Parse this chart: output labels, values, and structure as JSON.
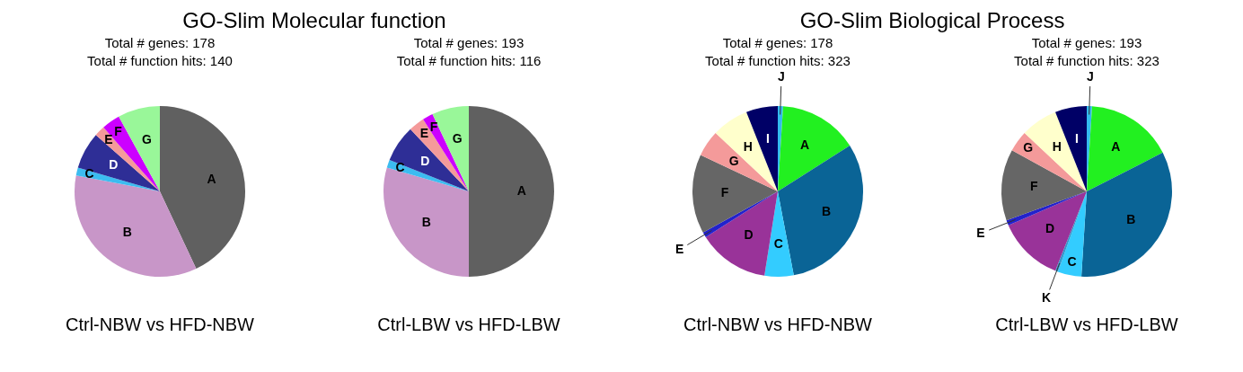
{
  "chart_data": [
    {
      "type": "pie",
      "title": "GO-Slim Molecular function",
      "subtitle": "Total # genes: 178",
      "annotations": [
        "Total # function hits: 140"
      ],
      "xlabel": "Ctrl-NBW vs HFD-NBW",
      "categories": [
        "A",
        "B",
        "C",
        "D",
        "E",
        "F",
        "G"
      ],
      "values": [
        43,
        35,
        1.5,
        7,
        2,
        3.5,
        8
      ],
      "colors": [
        "#606060",
        "#c896c8",
        "#3cbcf0",
        "#2e2e96",
        "#f49a9a",
        "#cc00ff",
        "#99f799"
      ]
    },
    {
      "type": "pie",
      "subtitle": "Total # genes: 193",
      "annotations": [
        "Total # function hits: 116"
      ],
      "xlabel": "Ctrl-LBW vs HFD-LBW",
      "categories": [
        "A",
        "B",
        "C",
        "D",
        "E",
        "F",
        "G"
      ],
      "values": [
        50,
        29.5,
        1.5,
        7,
        3,
        2,
        7
      ],
      "colors": [
        "#606060",
        "#c896c8",
        "#3cbcf0",
        "#2e2e96",
        "#f49a9a",
        "#cc00ff",
        "#99f799"
      ]
    },
    {
      "type": "pie",
      "title": "GO-Slim Biological Process",
      "subtitle": "Total # genes: 178",
      "annotations": [
        "Total # function hits: 323"
      ],
      "xlabel": "Ctrl-NBW vs HFD-NBW",
      "categories": [
        "J",
        "A",
        "B",
        "C",
        "D",
        "E",
        "F",
        "G",
        "H",
        "I"
      ],
      "values": [
        1,
        15,
        31,
        5.5,
        13.5,
        1,
        15,
        5,
        7,
        6
      ],
      "colors": [
        "#33bbee",
        "#22f020",
        "#0a6496",
        "#33ccff",
        "#993399",
        "#2222cc",
        "#666666",
        "#f49a9a",
        "#ffffcc",
        "#000066"
      ]
    },
    {
      "type": "pie",
      "subtitle": "Total # genes: 193",
      "annotations": [
        "Total # function hits: 323"
      ],
      "xlabel": "Ctrl-LBW vs HFD-LBW",
      "categories": [
        "J",
        "A",
        "B",
        "C",
        "K",
        "D",
        "E",
        "F",
        "G",
        "H",
        "I"
      ],
      "values": [
        1,
        16.5,
        33.5,
        4.5,
        0.5,
        12.5,
        1,
        13.5,
        4,
        7,
        6
      ],
      "colors": [
        "#33bbee",
        "#22f020",
        "#0a6496",
        "#33ccff",
        "#3399cc",
        "#993399",
        "#2222cc",
        "#666666",
        "#f49a9a",
        "#ffffcc",
        "#000066"
      ]
    }
  ]
}
